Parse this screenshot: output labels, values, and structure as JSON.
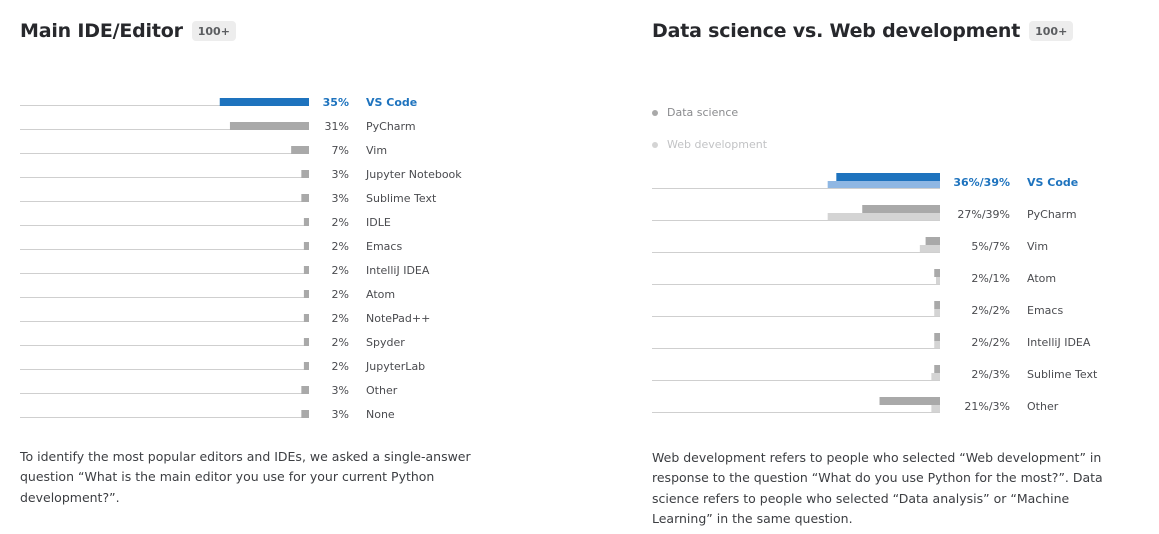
{
  "left": {
    "title": "Main IDE/Editor",
    "badge": "100+",
    "caption": "To identify the most popular editors and IDEs, we asked a single-answer question “What is the main editor you use for your current Python development?”."
  },
  "right": {
    "title": "Data science vs. Web development",
    "badge": "100+",
    "legend": [
      "Data science",
      "Web development"
    ],
    "caption": "Web development refers to people who selected “Web development” in response to the question “What do you use Python for the most?”. Data science refers to people who selected “Data analysis” or “Machine Learning” in the same question."
  },
  "colors": {
    "highlight_dark": "#1e73be",
    "highlight_light": "#8fb7e3",
    "bar_gray": "#a9a9a9",
    "bar_light_gray": "#d4d4d4",
    "axis_line": "#cfcfcf",
    "text": "#27282c",
    "label_gray": "#4a4b4f"
  },
  "chart_data": [
    {
      "type": "bar",
      "orientation": "horizontal",
      "categories": [
        "VS Code",
        "PyCharm",
        "Vim",
        "Jupyter Notebook",
        "Sublime Text",
        "IDLE",
        "Emacs",
        "IntelliJ IDEA",
        "Atom",
        "NotePad++",
        "Spyder",
        "JupyterLab",
        "Other",
        "None"
      ],
      "values": [
        35,
        31,
        7,
        3,
        3,
        2,
        2,
        2,
        2,
        2,
        2,
        2,
        3,
        3
      ],
      "labels": [
        "35%",
        "31%",
        "7%",
        "3%",
        "3%",
        "2%",
        "2%",
        "2%",
        "2%",
        "2%",
        "2%",
        "2%",
        "3%",
        "3%"
      ],
      "unit": "%",
      "highlight_index": 0,
      "xlim": [
        0,
        100
      ]
    },
    {
      "type": "bar",
      "orientation": "horizontal",
      "categories": [
        "VS Code",
        "PyCharm",
        "Vim",
        "Atom",
        "Emacs",
        "IntelliJ IDEA",
        "Sublime Text",
        "Other"
      ],
      "series": [
        {
          "name": "Data science",
          "values": [
            36,
            27,
            5,
            2,
            2,
            2,
            2,
            21
          ]
        },
        {
          "name": "Web development",
          "values": [
            39,
            39,
            7,
            1,
            2,
            2,
            3,
            3
          ]
        }
      ],
      "labels": [
        "36%/39%",
        "27%/39%",
        "5%/7%",
        "2%/1%",
        "2%/2%",
        "2%/2%",
        "2%/3%",
        "21%/3%"
      ],
      "unit": "%",
      "highlight_index": 0,
      "xlim": [
        0,
        100
      ]
    }
  ]
}
